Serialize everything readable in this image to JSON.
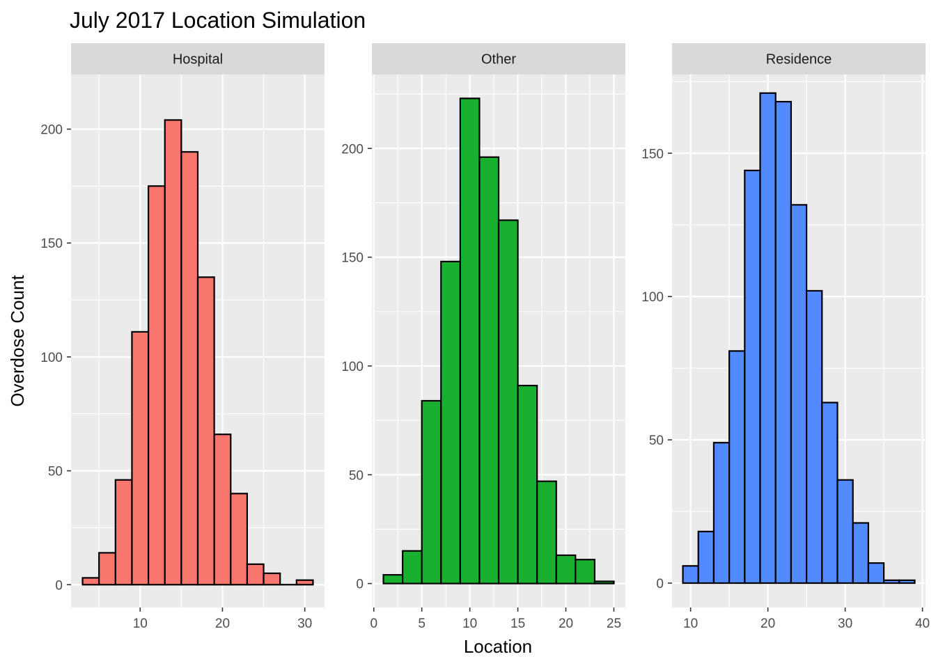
{
  "chart_data": {
    "type": "bar",
    "title": "July 2017 Location Simulation",
    "xlabel": "Location",
    "ylabel": "Overdose Count",
    "grid": true,
    "legend": "none",
    "panels": [
      {
        "name": "Hospital",
        "color": "#F8766D",
        "binwidth": 2,
        "bins": [
          {
            "x": 4,
            "y": 3
          },
          {
            "x": 6,
            "y": 14
          },
          {
            "x": 8,
            "y": 46
          },
          {
            "x": 10,
            "y": 111
          },
          {
            "x": 12,
            "y": 175
          },
          {
            "x": 14,
            "y": 204
          },
          {
            "x": 16,
            "y": 190
          },
          {
            "x": 18,
            "y": 135
          },
          {
            "x": 20,
            "y": 66
          },
          {
            "x": 22,
            "y": 40
          },
          {
            "x": 24,
            "y": 9
          },
          {
            "x": 26,
            "y": 5
          },
          {
            "x": 28,
            "y": 0
          },
          {
            "x": 30,
            "y": 2
          }
        ],
        "xlim": [
          1.6,
          32.4
        ],
        "ylim": [
          -10,
          224
        ],
        "xticks": [
          10,
          20,
          30
        ],
        "yticks": [
          0,
          50,
          100,
          150,
          200
        ]
      },
      {
        "name": "Other",
        "color": "#1AB02F",
        "binwidth": 2,
        "bins": [
          {
            "x": 2,
            "y": 4
          },
          {
            "x": 4,
            "y": 15
          },
          {
            "x": 6,
            "y": 84
          },
          {
            "x": 8,
            "y": 148
          },
          {
            "x": 10,
            "y": 223
          },
          {
            "x": 12,
            "y": 196
          },
          {
            "x": 14,
            "y": 167
          },
          {
            "x": 16,
            "y": 91
          },
          {
            "x": 18,
            "y": 47
          },
          {
            "x": 20,
            "y": 13
          },
          {
            "x": 22,
            "y": 11
          },
          {
            "x": 24,
            "y": 1
          }
        ],
        "xlim": [
          -0.2,
          26.2
        ],
        "ylim": [
          -11,
          234
        ],
        "xticks": [
          0,
          5,
          10,
          15,
          20,
          25
        ],
        "yticks": [
          0,
          50,
          100,
          150,
          200
        ]
      },
      {
        "name": "Residence",
        "color": "#518BFF",
        "binwidth": 2,
        "bins": [
          {
            "x": 10,
            "y": 6
          },
          {
            "x": 12,
            "y": 18
          },
          {
            "x": 14,
            "y": 49
          },
          {
            "x": 16,
            "y": 81
          },
          {
            "x": 18,
            "y": 144
          },
          {
            "x": 20,
            "y": 171
          },
          {
            "x": 22,
            "y": 168
          },
          {
            "x": 24,
            "y": 132
          },
          {
            "x": 26,
            "y": 102
          },
          {
            "x": 28,
            "y": 63
          },
          {
            "x": 30,
            "y": 36
          },
          {
            "x": 32,
            "y": 21
          },
          {
            "x": 34,
            "y": 7
          },
          {
            "x": 36,
            "y": 1
          },
          {
            "x": 38,
            "y": 1
          }
        ],
        "xlim": [
          7.6,
          40.4
        ],
        "ylim": [
          -8.5,
          177.5
        ],
        "xticks": [
          10,
          20,
          30,
          40
        ],
        "yticks": [
          0,
          50,
          100,
          150
        ]
      }
    ]
  }
}
